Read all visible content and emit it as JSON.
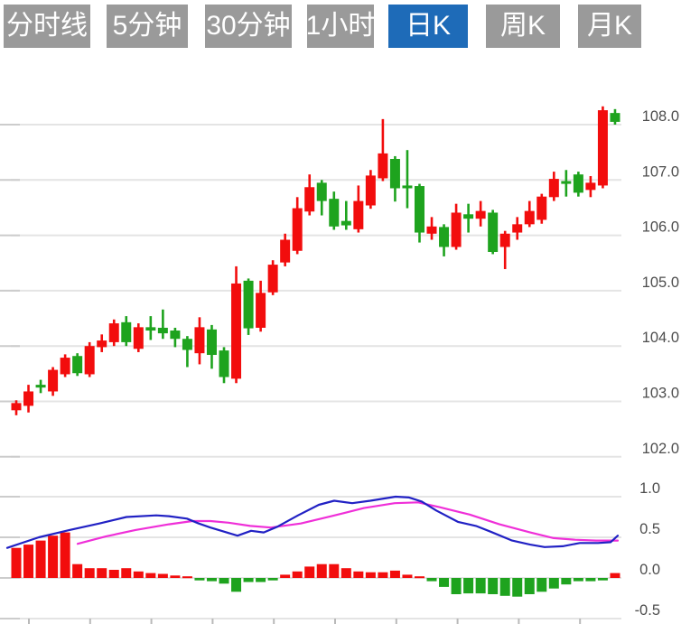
{
  "tabbar": {
    "inactive_bg": "#9a9a9a",
    "active_bg": "#1e6bb8",
    "text_color": "#ffffff",
    "tabs": [
      {
        "label": "分时线",
        "active": false
      },
      {
        "label": "5分钟",
        "active": false
      },
      {
        "label": "30分钟",
        "active": false
      },
      {
        "label": "1小时",
        "active": false
      },
      {
        "label": "日K",
        "active": true
      },
      {
        "label": "周K",
        "active": false
      },
      {
        "label": "月K",
        "active": false
      }
    ]
  },
  "chart_data": {
    "type": "candlestick",
    "title": "",
    "subtitle": "",
    "legend": [],
    "grid": true,
    "up_color": "#f20d0d",
    "down_color": "#1ea31e",
    "dif_color": "#2121c4",
    "dea_color": "#ef2fd8",
    "grid_color": "#e4e4e4",
    "grid_tick_color": "#cccccc",
    "axis_text_color": "#4d4d4d",
    "price_axis": {
      "side": "right",
      "tick_labels": [
        "108.0",
        "107.0",
        "106.0",
        "105.0",
        "104.0",
        "103.0",
        "102.0"
      ],
      "tick_values": [
        108.0,
        107.0,
        106.0,
        105.0,
        104.0,
        103.0,
        102.0
      ],
      "range": [
        101.7,
        108.6
      ]
    },
    "macd_axis": {
      "side": "right",
      "tick_labels": [
        "1.0",
        "0.5",
        "0.0",
        "-0.5"
      ],
      "tick_values": [
        1.0,
        0.5,
        0.0,
        -0.5
      ],
      "range": [
        -0.5,
        1.0
      ]
    },
    "candles_ohlc": [
      [
        102.84,
        103.02,
        102.75,
        102.97
      ],
      [
        102.92,
        103.3,
        102.8,
        103.18
      ],
      [
        103.3,
        103.39,
        103.15,
        103.25
      ],
      [
        103.18,
        103.62,
        103.1,
        103.57
      ],
      [
        103.49,
        103.85,
        103.44,
        103.79
      ],
      [
        103.82,
        103.87,
        103.46,
        103.51
      ],
      [
        103.49,
        104.07,
        103.44,
        104.0
      ],
      [
        103.98,
        104.21,
        103.89,
        104.1
      ],
      [
        104.07,
        104.48,
        104.0,
        104.41
      ],
      [
        104.43,
        104.54,
        104.0,
        104.07
      ],
      [
        103.95,
        104.41,
        103.89,
        104.34
      ],
      [
        104.34,
        104.54,
        104.11,
        104.28
      ],
      [
        104.33,
        104.66,
        104.13,
        104.23
      ],
      [
        104.28,
        104.33,
        103.98,
        104.13
      ],
      [
        104.13,
        104.18,
        103.62,
        103.93
      ],
      [
        103.87,
        104.52,
        103.67,
        104.34
      ],
      [
        104.3,
        104.38,
        103.59,
        103.84
      ],
      [
        103.92,
        103.98,
        103.33,
        103.44
      ],
      [
        103.41,
        105.44,
        103.33,
        105.13
      ],
      [
        105.18,
        105.22,
        104.2,
        104.32
      ],
      [
        104.33,
        105.18,
        104.26,
        104.96
      ],
      [
        104.97,
        105.55,
        104.92,
        105.47
      ],
      [
        105.51,
        106.03,
        105.44,
        105.92
      ],
      [
        105.72,
        106.69,
        105.66,
        106.49
      ],
      [
        106.43,
        107.1,
        106.36,
        106.87
      ],
      [
        106.95,
        107.0,
        106.36,
        106.62
      ],
      [
        106.66,
        106.79,
        106.1,
        106.16
      ],
      [
        106.26,
        106.62,
        106.1,
        106.18
      ],
      [
        106.11,
        106.9,
        106.05,
        106.62
      ],
      [
        106.54,
        107.18,
        106.48,
        107.08
      ],
      [
        107.03,
        108.1,
        106.98,
        107.48
      ],
      [
        107.38,
        107.43,
        106.61,
        106.85
      ],
      [
        106.9,
        107.54,
        106.49,
        106.85
      ],
      [
        106.89,
        106.93,
        105.87,
        106.05
      ],
      [
        106.03,
        106.33,
        105.92,
        106.16
      ],
      [
        106.15,
        106.2,
        105.62,
        105.79
      ],
      [
        105.79,
        106.57,
        105.74,
        106.41
      ],
      [
        106.38,
        106.57,
        106.05,
        106.3
      ],
      [
        106.3,
        106.62,
        106.16,
        106.44
      ],
      [
        106.41,
        106.46,
        105.66,
        105.7
      ],
      [
        105.79,
        106.08,
        105.39,
        106.03
      ],
      [
        106.05,
        106.33,
        105.92,
        106.2
      ],
      [
        106.2,
        106.62,
        106.15,
        106.44
      ],
      [
        106.28,
        106.75,
        106.21,
        106.7
      ],
      [
        106.69,
        107.15,
        106.62,
        107.02
      ],
      [
        106.98,
        107.18,
        106.7,
        106.93
      ],
      [
        107.1,
        107.15,
        106.7,
        106.77
      ],
      [
        106.82,
        107.07,
        106.69,
        106.95
      ],
      [
        106.9,
        108.33,
        106.85,
        108.26
      ],
      [
        108.21,
        108.28,
        108.0,
        108.05
      ]
    ],
    "macd_histogram": [
      0.37,
      0.41,
      0.46,
      0.52,
      0.56,
      0.17,
      0.12,
      0.12,
      0.1,
      0.12,
      0.08,
      0.06,
      0.05,
      0.03,
      0.02,
      -0.03,
      -0.04,
      -0.07,
      -0.17,
      -0.05,
      -0.05,
      -0.03,
      0.04,
      0.08,
      0.14,
      0.17,
      0.17,
      0.12,
      0.08,
      0.07,
      0.07,
      0.09,
      0.04,
      0.02,
      -0.04,
      -0.11,
      -0.2,
      -0.19,
      -0.19,
      -0.2,
      -0.22,
      -0.23,
      -0.2,
      -0.17,
      -0.13,
      -0.08,
      -0.04,
      -0.04,
      -0.03,
      0.06
    ],
    "dif_line": [
      [
        8,
        0.37
      ],
      [
        43,
        0.5
      ],
      [
        77,
        0.59
      ],
      [
        110,
        0.67
      ],
      [
        140,
        0.75
      ],
      [
        173,
        0.77
      ],
      [
        187,
        0.76
      ],
      [
        207,
        0.73
      ],
      [
        220,
        0.67
      ],
      [
        233,
        0.62
      ],
      [
        248,
        0.57
      ],
      [
        263,
        0.52
      ],
      [
        278,
        0.58
      ],
      [
        292,
        0.56
      ],
      [
        307,
        0.63
      ],
      [
        330,
        0.77
      ],
      [
        353,
        0.9
      ],
      [
        370,
        0.95
      ],
      [
        390,
        0.92
      ],
      [
        410,
        0.95
      ],
      [
        438,
        1.0
      ],
      [
        453,
        0.99
      ],
      [
        467,
        0.94
      ],
      [
        483,
        0.83
      ],
      [
        507,
        0.69
      ],
      [
        527,
        0.64
      ],
      [
        543,
        0.57
      ],
      [
        567,
        0.46
      ],
      [
        587,
        0.41
      ],
      [
        603,
        0.38
      ],
      [
        623,
        0.39
      ],
      [
        642,
        0.43
      ],
      [
        662,
        0.43
      ],
      [
        676,
        0.44
      ],
      [
        684,
        0.52
      ]
    ],
    "dea_line": [
      [
        86,
        0.42
      ],
      [
        117,
        0.51
      ],
      [
        150,
        0.59
      ],
      [
        187,
        0.66
      ],
      [
        213,
        0.7
      ],
      [
        233,
        0.7
      ],
      [
        253,
        0.68
      ],
      [
        277,
        0.64
      ],
      [
        300,
        0.62
      ],
      [
        333,
        0.67
      ],
      [
        367,
        0.76
      ],
      [
        403,
        0.86
      ],
      [
        437,
        0.92
      ],
      [
        463,
        0.93
      ],
      [
        487,
        0.87
      ],
      [
        520,
        0.78
      ],
      [
        553,
        0.66
      ],
      [
        587,
        0.56
      ],
      [
        613,
        0.49
      ],
      [
        637,
        0.47
      ],
      [
        660,
        0.46
      ],
      [
        684,
        0.46
      ]
    ],
    "x_axis": {
      "tick_labels_visible": false,
      "tick_count": 10
    }
  }
}
